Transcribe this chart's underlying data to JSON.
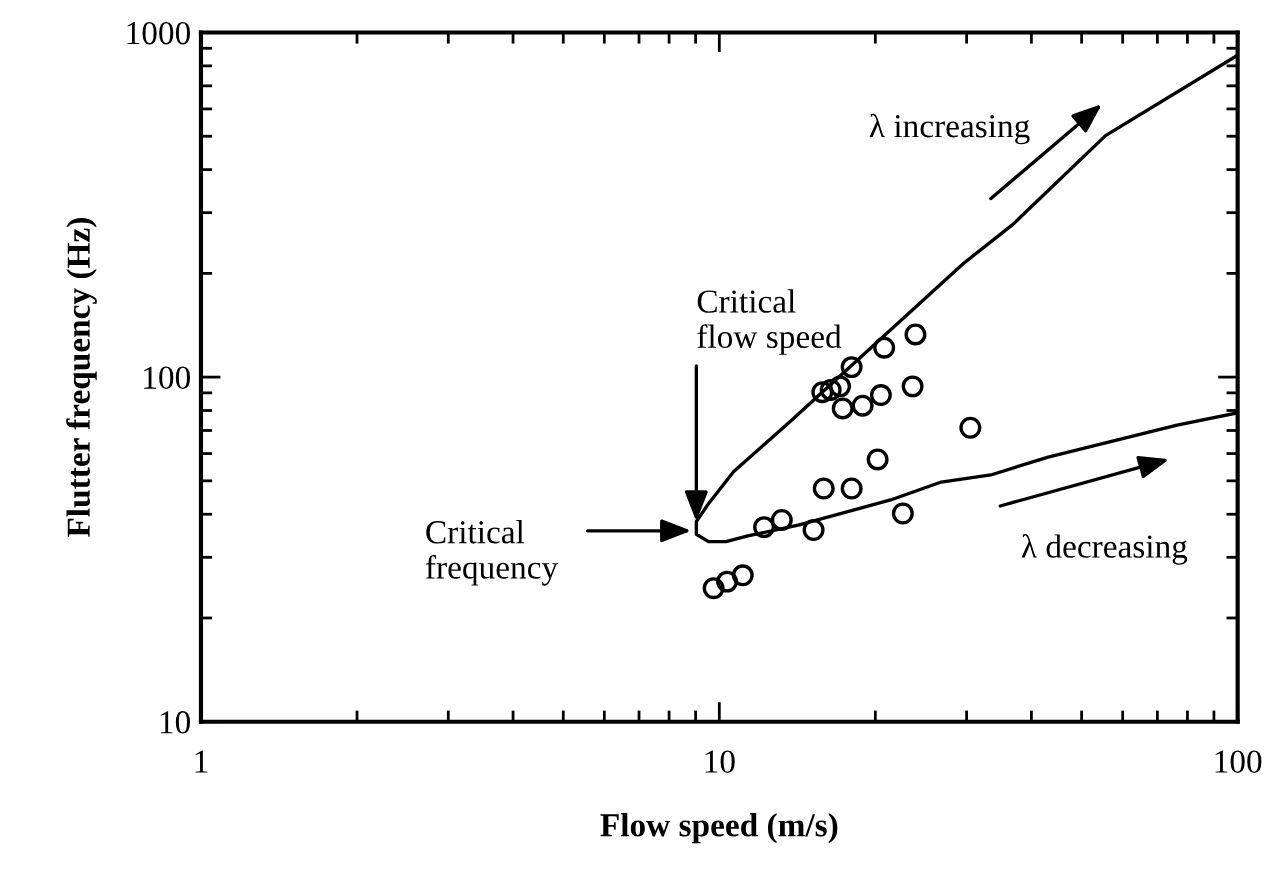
{
  "chart_data": {
    "type": "scatter",
    "xlabel": "Flow speed (m/s)",
    "ylabel": "Flutter frequency (Hz)",
    "log": "xy",
    "xlim": [
      1,
      100
    ],
    "ylim": [
      10,
      1000
    ],
    "xticks": [
      1,
      10,
      100
    ],
    "yticks": [
      10,
      100,
      1000
    ],
    "grid": false,
    "series": [
      {
        "color": "#000000",
        "marker": "circle",
        "x": [
          9.75,
          10.35,
          11.1,
          12.2,
          13.2,
          15.2,
          15.9,
          18.0,
          20.2,
          22.6,
          30.5,
          15.8,
          16.4,
          17.1,
          17.3,
          18.9,
          20.5,
          23.6,
          18.0,
          20.8,
          23.9
        ],
        "values": [
          24.4,
          25.5,
          26.6,
          36.7,
          38.5,
          36.0,
          47.5,
          47.5,
          57.7,
          40.2,
          71.3,
          90.4,
          91.8,
          94,
          81.1,
          82.6,
          88.7,
          94,
          106.9,
          121.7,
          133
        ]
      },
      {
        "type": "line",
        "color": "#000000",
        "marker": "none",
        "line_style": "solid",
        "x": [
          100,
          55.6,
          36.8,
          29.5,
          20.1,
          13.7,
          10.66,
          9.53,
          9.03,
          9.03,
          9.53,
          10.3,
          11.35,
          14.2,
          21.4,
          26.8,
          33.4,
          43.1,
          55.6,
          76.4,
          100
        ],
        "values": [
          859,
          502,
          277,
          213,
          125.8,
          74.3,
          53.2,
          42.9,
          38.1,
          35.0,
          33.3,
          33.3,
          34.6,
          37.2,
          44.0,
          49.6,
          52.0,
          58.6,
          64.4,
          72.6,
          78.8
        ]
      }
    ],
    "annotations": [
      "λ increasing",
      "λ decreasing",
      {
        "text": "Critical\nflow speed",
        "x": 9.03,
        "y": 38.1
      },
      "Critical\nfrequency"
    ]
  }
}
